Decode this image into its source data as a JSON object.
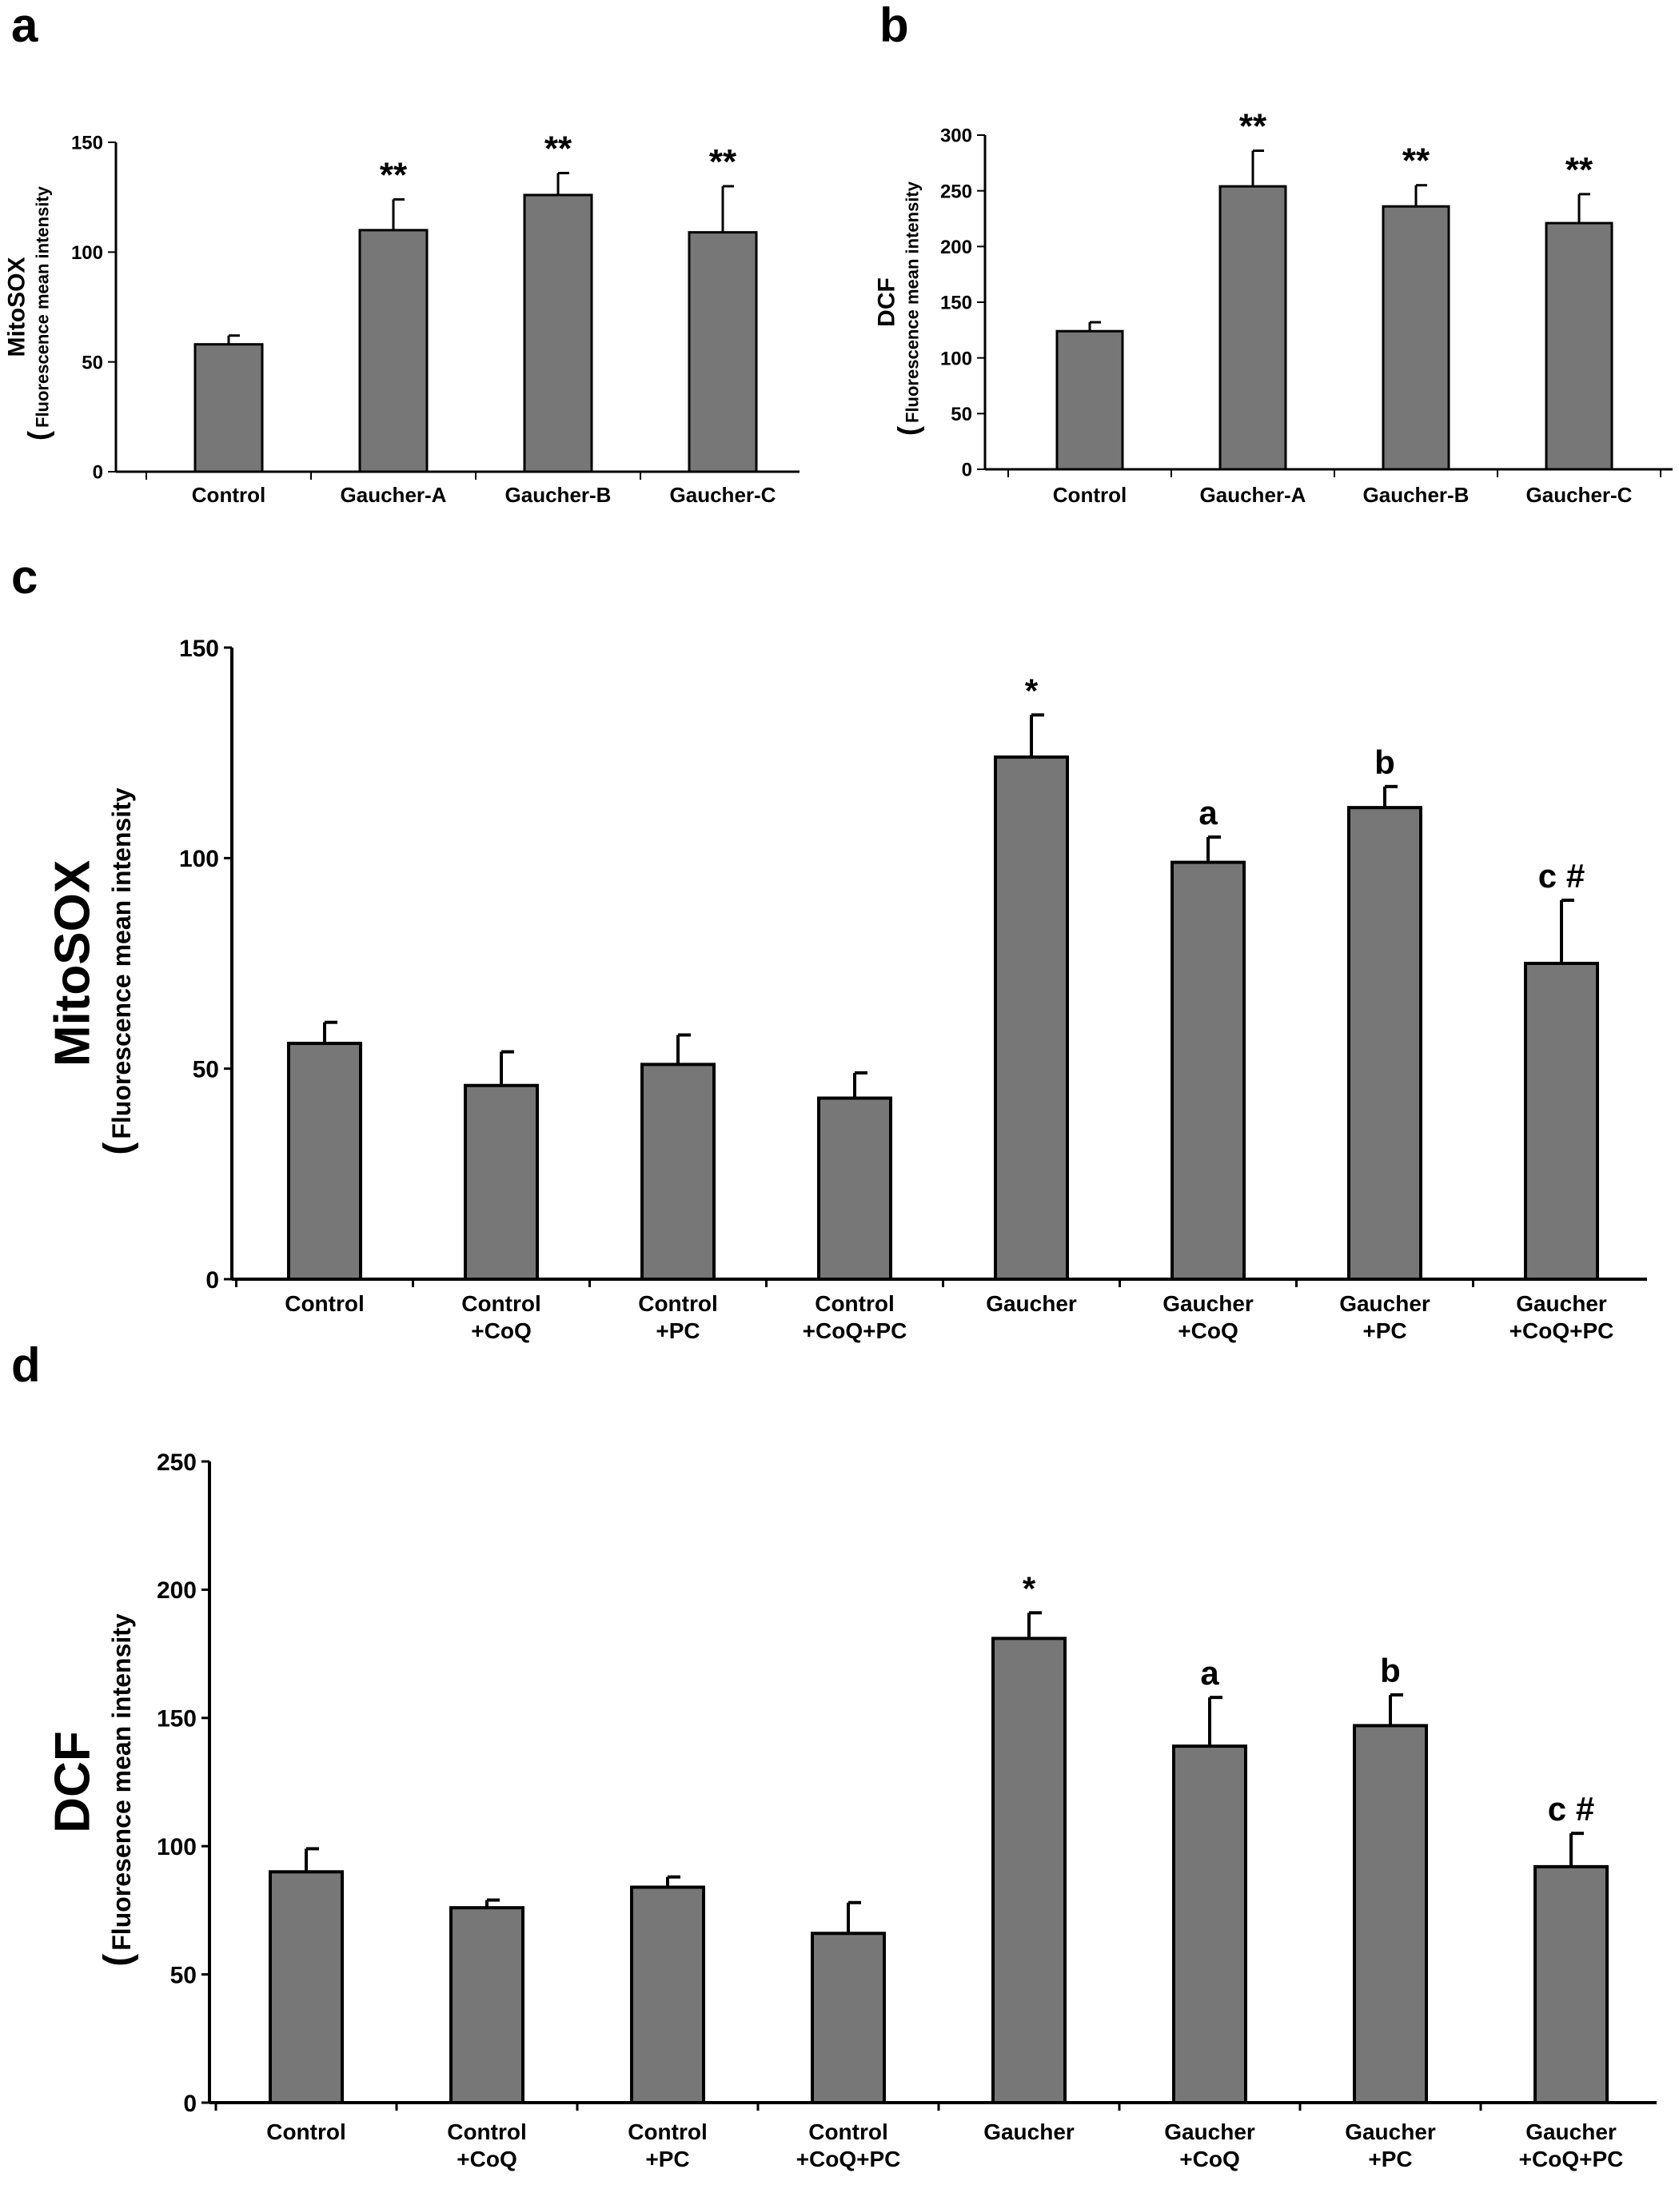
{
  "figure": {
    "panel_letters": [
      "a",
      "b",
      "c",
      "d"
    ]
  },
  "colors": {
    "bar_fill": "#777777",
    "bar_stroke": "#000000",
    "axis": "#000000",
    "background": "#ffffff"
  },
  "chart_data": [
    {
      "panel": "a",
      "type": "bar",
      "ylabel": "MitoSOX",
      "ylabel_sub": "Fluorescence mean intensity",
      "ylim": [
        0,
        150
      ],
      "yticks": [
        0,
        50,
        100,
        150
      ],
      "grid": false,
      "categories": [
        [
          "Control"
        ],
        [
          "Gaucher-A"
        ],
        [
          "Gaucher-B"
        ],
        [
          "Gaucher-C"
        ]
      ],
      "values": [
        58,
        110,
        126,
        109
      ],
      "errors": [
        4,
        14,
        10,
        21
      ],
      "annotations": [
        "",
        "**",
        "**",
        "**"
      ]
    },
    {
      "panel": "b",
      "type": "bar",
      "ylabel": "DCF",
      "ylabel_sub": "Fluorescence mean intensity",
      "ylim": [
        0,
        300
      ],
      "yticks": [
        0,
        50,
        100,
        150,
        200,
        250,
        300
      ],
      "grid": false,
      "categories": [
        [
          "Control"
        ],
        [
          "Gaucher-A"
        ],
        [
          "Gaucher-B"
        ],
        [
          "Gaucher-C"
        ]
      ],
      "values": [
        124,
        254,
        236,
        221
      ],
      "errors": [
        8,
        32,
        19,
        26
      ],
      "annotations": [
        "",
        "**",
        "**",
        "**"
      ]
    },
    {
      "panel": "c",
      "type": "bar",
      "ylabel": "MitoSOX",
      "ylabel_sub": "Fluorescence mean intensity",
      "ylim": [
        0,
        150
      ],
      "yticks": [
        0,
        50,
        100,
        150
      ],
      "grid": false,
      "categories": [
        [
          "Control"
        ],
        [
          "Control",
          "+CoQ"
        ],
        [
          "Control",
          "+PC"
        ],
        [
          "Control",
          "+CoQ+PC"
        ],
        [
          "Gaucher"
        ],
        [
          "Gaucher",
          "+CoQ"
        ],
        [
          "Gaucher",
          "+PC"
        ],
        [
          "Gaucher",
          "+CoQ+PC"
        ]
      ],
      "values": [
        56,
        46,
        51,
        43,
        124,
        99,
        112,
        75
      ],
      "errors": [
        5,
        8,
        7,
        6,
        10,
        6,
        5,
        15
      ],
      "annotations": [
        "",
        "",
        "",
        "",
        "*",
        "a",
        "b",
        "c #"
      ]
    },
    {
      "panel": "d",
      "type": "bar",
      "ylabel": "DCF",
      "ylabel_sub": "Fluoresence mean intensity",
      "ylim": [
        0,
        250
      ],
      "yticks": [
        0,
        50,
        100,
        150,
        200,
        250
      ],
      "grid": false,
      "categories": [
        [
          "Control"
        ],
        [
          "Control",
          "+CoQ"
        ],
        [
          "Control",
          "+PC"
        ],
        [
          "Control",
          "+CoQ+PC"
        ],
        [
          "Gaucher"
        ],
        [
          "Gaucher",
          "+CoQ"
        ],
        [
          "Gaucher",
          "+PC"
        ],
        [
          "Gaucher",
          "+CoQ+PC"
        ]
      ],
      "values": [
        90,
        76,
        84,
        66,
        181,
        139,
        147,
        92
      ],
      "errors": [
        9,
        3,
        4,
        12,
        10,
        19,
        12,
        13
      ],
      "annotations": [
        "",
        "",
        "",
        "",
        "*",
        "a",
        "b",
        "c #"
      ]
    }
  ]
}
